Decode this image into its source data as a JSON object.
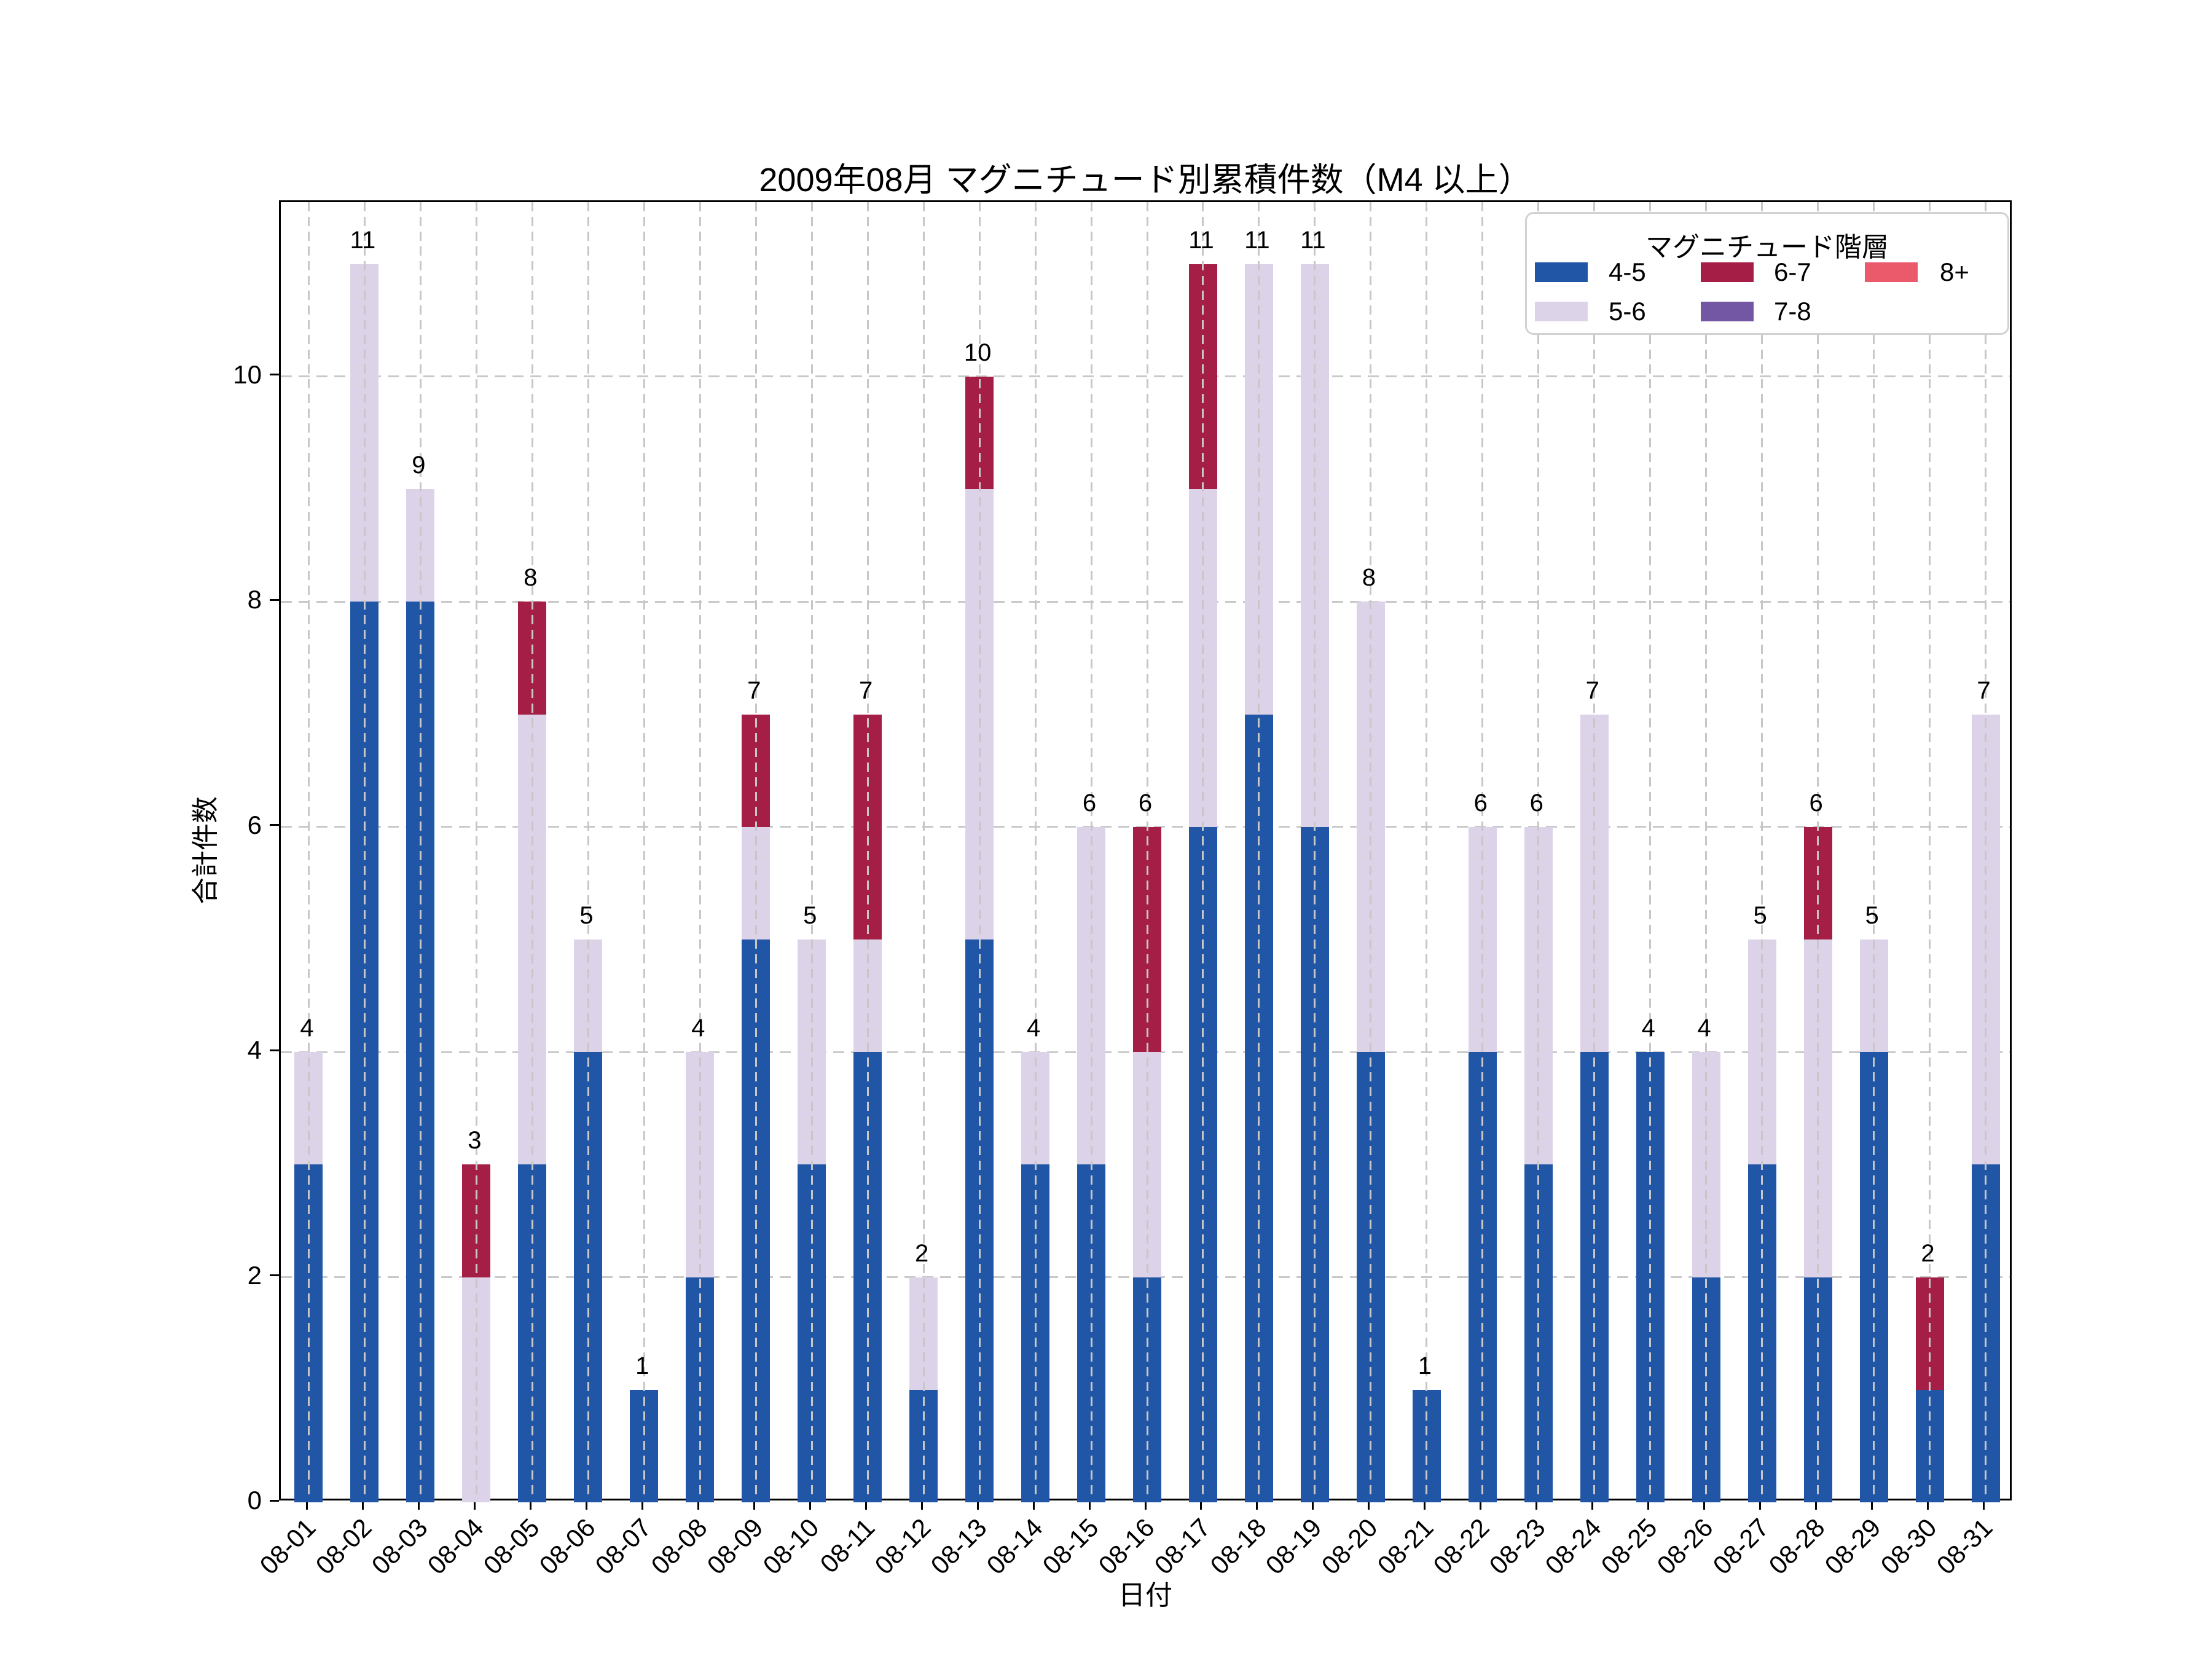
{
  "chart_data": {
    "type": "bar",
    "stacked": true,
    "title": "2009年08月 マグニチュード別累積件数（M4 以上）",
    "xlabel": "日付",
    "ylabel": "合計件数",
    "legend_title": "マグニチュード階層",
    "legend_position": "upper right",
    "grid": "both-dashed",
    "categories": [
      "08-01",
      "08-02",
      "08-03",
      "08-04",
      "08-05",
      "08-06",
      "08-07",
      "08-08",
      "08-09",
      "08-10",
      "08-11",
      "08-12",
      "08-13",
      "08-14",
      "08-15",
      "08-16",
      "08-17",
      "08-18",
      "08-19",
      "08-20",
      "08-21",
      "08-22",
      "08-23",
      "08-24",
      "08-25",
      "08-26",
      "08-27",
      "08-28",
      "08-29",
      "08-30",
      "08-31"
    ],
    "series": [
      {
        "name": "4-5",
        "color": "#2056A5",
        "values": [
          3,
          8,
          8,
          0,
          3,
          4,
          1,
          2,
          5,
          3,
          4,
          1,
          5,
          3,
          3,
          2,
          6,
          7,
          6,
          4,
          1,
          4,
          3,
          4,
          4,
          2,
          3,
          2,
          4,
          1,
          3
        ]
      },
      {
        "name": "5-6",
        "color": "#DDD3E8",
        "values": [
          1,
          3,
          1,
          2,
          4,
          1,
          0,
          2,
          1,
          2,
          1,
          1,
          4,
          1,
          3,
          2,
          3,
          4,
          5,
          4,
          0,
          2,
          3,
          3,
          0,
          2,
          2,
          3,
          1,
          0,
          4
        ]
      },
      {
        "name": "6-7",
        "color": "#A41E45",
        "values": [
          0,
          0,
          0,
          1,
          1,
          0,
          0,
          0,
          1,
          0,
          2,
          0,
          1,
          0,
          0,
          2,
          2,
          0,
          0,
          0,
          0,
          0,
          0,
          0,
          0,
          0,
          0,
          1,
          0,
          1,
          0
        ]
      },
      {
        "name": "7-8",
        "color": "#7357A4",
        "values": [
          0,
          0,
          0,
          0,
          0,
          0,
          0,
          0,
          0,
          0,
          0,
          0,
          0,
          0,
          0,
          0,
          0,
          0,
          0,
          0,
          0,
          0,
          0,
          0,
          0,
          0,
          0,
          0,
          0,
          0,
          0
        ]
      },
      {
        "name": "8+",
        "color": "#EA5A6B",
        "values": [
          0,
          0,
          0,
          0,
          0,
          0,
          0,
          0,
          0,
          0,
          0,
          0,
          0,
          0,
          0,
          0,
          0,
          0,
          0,
          0,
          0,
          0,
          0,
          0,
          0,
          0,
          0,
          0,
          0,
          0,
          0
        ]
      }
    ],
    "totals": [
      4,
      11,
      9,
      3,
      8,
      5,
      1,
      4,
      7,
      5,
      7,
      2,
      10,
      4,
      6,
      6,
      11,
      11,
      11,
      8,
      1,
      6,
      6,
      7,
      4,
      4,
      5,
      6,
      5,
      2,
      7
    ],
    "yticks": [
      0,
      2,
      4,
      6,
      8,
      10
    ],
    "ylim": [
      0,
      11.55
    ]
  }
}
